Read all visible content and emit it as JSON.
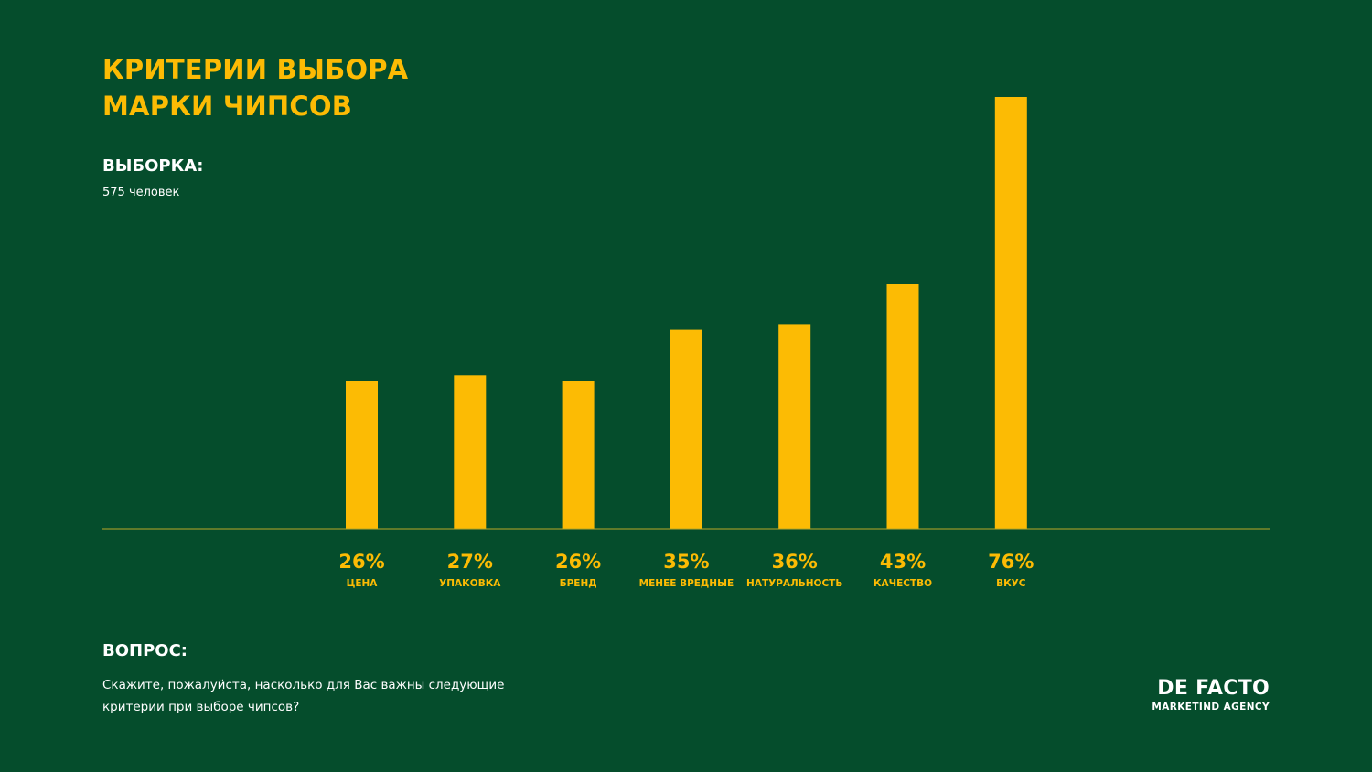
{
  "colors": {
    "background": "#054d2c",
    "accent": "#fcbb04",
    "text": "#ffffff",
    "baseline": "#b9a629"
  },
  "title_lines": [
    "КРИТЕРИИ ВЫБОРА",
    "МАРКИ ЧИПСОВ"
  ],
  "sample": {
    "label": "ВЫБОРКА:",
    "value": "575 человек"
  },
  "question": {
    "label": "ВОПРОС:",
    "lines": [
      "Скажите, пожалуйста, насколько для Вас важны следующие",
      "критерии при выборе чипсов?"
    ]
  },
  "logo": {
    "name": "DE FACTO",
    "subtitle": "MARKETIND AGENCY"
  },
  "chart_data": {
    "type": "bar",
    "categories": [
      "ЦЕНА",
      "УПАКОВКА",
      "БРЕНД",
      "МЕНЕЕ ВРЕДНЫЕ",
      "НАТУРАЛЬНОСТЬ",
      "КАЧЕСТВО",
      "ВКУС"
    ],
    "values": [
      26,
      27,
      26,
      35,
      36,
      43,
      76
    ],
    "value_labels": [
      "26%",
      "27%",
      "26%",
      "35%",
      "36%",
      "43%",
      "76%"
    ],
    "ylim": [
      0,
      76
    ],
    "grid": false,
    "legend": "none"
  }
}
